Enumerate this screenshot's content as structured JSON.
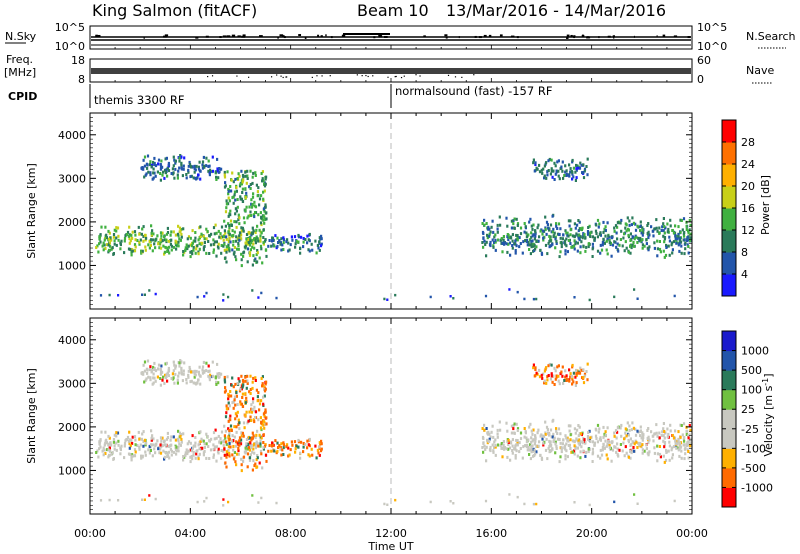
{
  "header": {
    "site": "King Salmon (fitACF)",
    "beam": "Beam 10",
    "date_range": "13/Mar/2016 - 14/Mar/2016"
  },
  "strips": {
    "nsky_label": "N.Sky",
    "nsky_ticks": [
      "10^5",
      "10^0"
    ],
    "nsearch_label": "N.Search",
    "nsearch_ticks": [
      "10^5",
      "10^0"
    ],
    "freq_label": "Freq.",
    "freq_unit": "[MHz]",
    "freq_ticks": [
      "18",
      "8"
    ],
    "nave_label": "Nave",
    "nave_ticks": [
      "60",
      "0"
    ],
    "cpid_label": "CPID",
    "cpid_segments": [
      {
        "text": "themis 3300 RF",
        "start_hour": 0
      },
      {
        "text": "normalsound (fast) -157 RF",
        "start_hour": 12
      }
    ]
  },
  "time_axis": {
    "label": "Time UT",
    "ticks": [
      "00:00",
      "04:00",
      "08:00",
      "12:00",
      "16:00",
      "20:00",
      "00:00"
    ]
  },
  "colors": {
    "power_scale": [
      "#1a1aff",
      "#2255aa",
      "#2a7a5a",
      "#40b040",
      "#c8d018",
      "#ffb000",
      "#ff7000",
      "#ff0000"
    ],
    "velocity_scale": [
      "#ff0000",
      "#ff6a00",
      "#ffb000",
      "#c8c8c0",
      "#c8c8c0",
      "#70c040",
      "#2a7a5a",
      "#2255aa",
      "#1a1acc"
    ]
  },
  "chart_data": [
    {
      "type": "heatmap",
      "panel": "power",
      "ylabel": "Slant Range [km]",
      "x_range_hours": [
        0,
        24
      ],
      "ylim": [
        0,
        4500
      ],
      "yticks": [
        1000,
        2000,
        3000,
        4000
      ],
      "colorbar": {
        "label": "Power [dB]",
        "range": [
          0,
          32
        ],
        "tick_values": [
          4,
          8,
          12,
          16,
          20,
          24,
          28
        ],
        "tick_labels": [
          "4",
          "8",
          "12",
          "16",
          "20",
          "24",
          "28"
        ]
      },
      "scatter_regions": [
        {
          "x_hours": [
            0.2,
            6.8
          ],
          "range_km": [
            1200,
            2000
          ],
          "mean_power_db": 14
        },
        {
          "x_hours": [
            2.0,
            5.2
          ],
          "range_km": [
            2900,
            3600
          ],
          "mean_power_db": 8
        },
        {
          "x_hours": [
            5.3,
            7.0
          ],
          "range_km": [
            1000,
            3200
          ],
          "mean_power_db": 12
        },
        {
          "x_hours": [
            7.0,
            9.2
          ],
          "range_km": [
            1300,
            1800
          ],
          "mean_power_db": 8
        },
        {
          "x_hours": [
            15.6,
            24.0
          ],
          "range_km": [
            1200,
            2200
          ],
          "mean_power_db": 10
        },
        {
          "x_hours": [
            17.6,
            19.8
          ],
          "range_km": [
            2900,
            3500
          ],
          "mean_power_db": 8
        },
        {
          "x_hours": [
            0.0,
            24.0
          ],
          "range_km": [
            200,
            500
          ],
          "mean_power_db": 6
        }
      ]
    },
    {
      "type": "heatmap",
      "panel": "velocity",
      "ylabel": "Slant Range [km]",
      "x_range_hours": [
        0,
        24
      ],
      "ylim": [
        0,
        4500
      ],
      "yticks": [
        1000,
        2000,
        3000,
        4000
      ],
      "colorbar": {
        "label": "Velocity [m s^-1]",
        "tick_labels": [
          "-1000",
          "-500",
          "-100",
          "-25",
          "25",
          "100",
          "500",
          "1000"
        ]
      },
      "scatter_regions": [
        {
          "x_hours": [
            0.2,
            6.8
          ],
          "range_km": [
            1200,
            2000
          ],
          "mean_velocity": 0
        },
        {
          "x_hours": [
            2.0,
            5.2
          ],
          "range_km": [
            2900,
            3600
          ],
          "mean_velocity": 0
        },
        {
          "x_hours": [
            5.3,
            7.0
          ],
          "range_km": [
            1000,
            3200
          ],
          "mean_velocity": -300
        },
        {
          "x_hours": [
            7.0,
            9.2
          ],
          "range_km": [
            1300,
            1800
          ],
          "mean_velocity": -300
        },
        {
          "x_hours": [
            15.6,
            24.0
          ],
          "range_km": [
            1200,
            2200
          ],
          "mean_velocity": 0
        },
        {
          "x_hours": [
            17.6,
            19.8
          ],
          "range_km": [
            2900,
            3500
          ],
          "mean_velocity": -400
        },
        {
          "x_hours": [
            0.0,
            24.0
          ],
          "range_km": [
            200,
            500
          ],
          "mean_velocity": 0
        }
      ]
    }
  ]
}
